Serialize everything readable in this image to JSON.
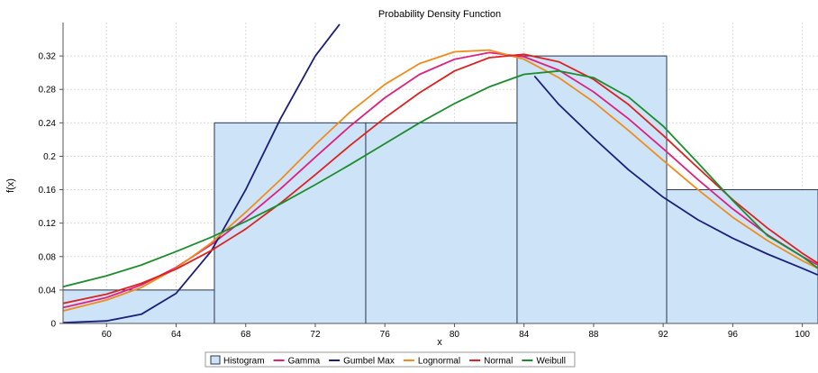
{
  "chart_data": {
    "type": "bar",
    "title": "Probability Density Function",
    "xlabel": "x",
    "ylabel": "f(x)",
    "xlim": [
      57.5,
      100.9
    ],
    "ylim": [
      0,
      0.36
    ],
    "x_ticks": [
      "60",
      "64",
      "68",
      "72",
      "76",
      "80",
      "84",
      "88",
      "92",
      "96",
      "100"
    ],
    "y_ticks": [
      "0",
      "0.04",
      "0.08",
      "0.12",
      "0.16",
      "0.2",
      "0.24",
      "0.28",
      "0.32"
    ],
    "grid": true,
    "legend_position": "bottom",
    "histogram": {
      "name": "Histogram",
      "color": "#cde4f8",
      "bins": [
        {
          "start": 57.5,
          "end": 66.2,
          "value": 0.04
        },
        {
          "start": 66.2,
          "end": 74.9,
          "value": 0.24
        },
        {
          "start": 74.9,
          "end": 83.6,
          "value": 0.24
        },
        {
          "start": 83.6,
          "end": 92.2,
          "value": 0.32
        },
        {
          "start": 92.2,
          "end": 100.9,
          "value": 0.16
        }
      ]
    },
    "series": [
      {
        "name": "Gamma",
        "color": "#e0207f",
        "x": [
          57.5,
          60,
          62,
          64,
          66,
          68,
          70,
          72,
          74,
          76,
          78,
          80,
          82,
          84,
          86,
          88,
          90,
          92,
          94,
          96,
          98,
          100,
          100.9
        ],
        "y": [
          0.019,
          0.031,
          0.046,
          0.067,
          0.094,
          0.126,
          0.161,
          0.199,
          0.236,
          0.27,
          0.298,
          0.316,
          0.324,
          0.319,
          0.303,
          0.277,
          0.245,
          0.209,
          0.172,
          0.137,
          0.106,
          0.08,
          0.07
        ]
      },
      {
        "name": "Gumbel Max",
        "color": "#1a1f7a",
        "x": [
          57.5,
          60,
          62,
          64,
          66,
          68,
          70,
          72,
          73.4
        ],
        "y": [
          0.001,
          0.003,
          0.011,
          0.036,
          0.086,
          0.16,
          0.245,
          0.32,
          0.358
        ],
        "x2": [
          84.6,
          86,
          88,
          90,
          92,
          94,
          96,
          98,
          100,
          100.9
        ],
        "y2": [
          0.296,
          0.262,
          0.222,
          0.184,
          0.151,
          0.124,
          0.102,
          0.083,
          0.066,
          0.058
        ]
      },
      {
        "name": "Lognormal",
        "color": "#f08c1c",
        "x": [
          57.5,
          60,
          62,
          64,
          66,
          68,
          70,
          72,
          74,
          76,
          78,
          80,
          82,
          84,
          86,
          88,
          90,
          92,
          94,
          96,
          98,
          100,
          100.9
        ],
        "y": [
          0.015,
          0.028,
          0.043,
          0.066,
          0.096,
          0.133,
          0.172,
          0.214,
          0.253,
          0.286,
          0.311,
          0.325,
          0.327,
          0.316,
          0.294,
          0.265,
          0.231,
          0.195,
          0.16,
          0.127,
          0.099,
          0.075,
          0.066
        ]
      },
      {
        "name": "Normal",
        "color": "#dd2222",
        "x": [
          57.5,
          60,
          62,
          64,
          66,
          68,
          70,
          72,
          74,
          76,
          78,
          80,
          82,
          84,
          86,
          88,
          90,
          92,
          94,
          96,
          98,
          100,
          100.9
        ],
        "y": [
          0.024,
          0.035,
          0.048,
          0.065,
          0.087,
          0.113,
          0.144,
          0.178,
          0.213,
          0.246,
          0.276,
          0.302,
          0.318,
          0.322,
          0.313,
          0.292,
          0.262,
          0.225,
          0.186,
          0.148,
          0.114,
          0.084,
          0.072
        ]
      },
      {
        "name": "Weibull",
        "color": "#1c8c2c",
        "x": [
          57.5,
          60,
          62,
          64,
          66,
          68,
          70,
          72,
          74,
          76,
          78,
          80,
          82,
          84,
          86,
          88,
          90,
          92,
          94,
          96,
          98,
          100,
          100.9
        ],
        "y": [
          0.044,
          0.057,
          0.07,
          0.086,
          0.103,
          0.122,
          0.143,
          0.166,
          0.19,
          0.215,
          0.24,
          0.263,
          0.283,
          0.298,
          0.302,
          0.294,
          0.271,
          0.236,
          0.192,
          0.147,
          0.105,
          0.08,
          0.066
        ]
      }
    ],
    "legend": [
      {
        "name": "Histogram",
        "color": "#cde4f8",
        "kind": "box"
      },
      {
        "name": "Gamma",
        "color": "#e0207f",
        "kind": "line"
      },
      {
        "name": "Gumbel Max",
        "color": "#1a1f7a",
        "kind": "line"
      },
      {
        "name": "Lognormal",
        "color": "#f08c1c",
        "kind": "line"
      },
      {
        "name": "Normal",
        "color": "#dd2222",
        "kind": "line"
      },
      {
        "name": "Weibull",
        "color": "#1c8c2c",
        "kind": "line"
      }
    ]
  }
}
